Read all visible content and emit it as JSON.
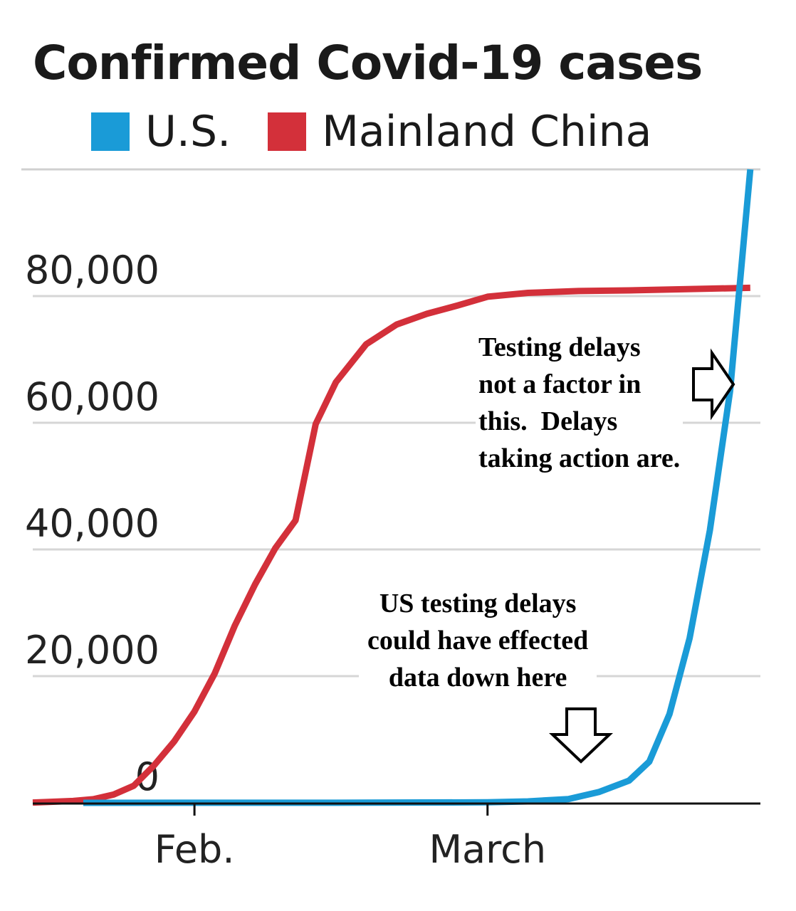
{
  "chart_data": {
    "type": "line",
    "title": "Confirmed Covid-19 cases",
    "xlabel": "",
    "ylabel": "",
    "ylim": [
      0,
      100000
    ],
    "y_ticks": [
      {
        "value": 0,
        "label": "0"
      },
      {
        "value": 20000,
        "label": "20,000"
      },
      {
        "value": 40000,
        "label": "40,000"
      },
      {
        "value": 60000,
        "label": "60,000"
      },
      {
        "value": 80000,
        "label": "80,000"
      }
    ],
    "x_ticks": [
      {
        "date": "2020-02-01",
        "label": "Feb."
      },
      {
        "date": "2020-03-01",
        "label": "March"
      }
    ],
    "x_range": [
      "2020-01-16",
      "2020-03-28"
    ],
    "grid": true,
    "legend": "top-left",
    "series": [
      {
        "name": "U.S.",
        "color": "#1a9bd7",
        "points": [
          [
            "2020-01-21",
            1
          ],
          [
            "2020-02-01",
            8
          ],
          [
            "2020-02-15",
            15
          ],
          [
            "2020-03-01",
            75
          ],
          [
            "2020-03-05",
            220
          ],
          [
            "2020-03-09",
            600
          ],
          [
            "2020-03-12",
            1700
          ],
          [
            "2020-03-15",
            3500
          ],
          [
            "2020-03-17",
            6500
          ],
          [
            "2020-03-19",
            14000
          ],
          [
            "2020-03-21",
            26000
          ],
          [
            "2020-03-23",
            43000
          ],
          [
            "2020-03-25",
            65000
          ],
          [
            "2020-03-27",
            100000
          ]
        ]
      },
      {
        "name": "Mainland China",
        "color": "#d3303a",
        "points": [
          [
            "2020-01-16",
            45
          ],
          [
            "2020-01-20",
            290
          ],
          [
            "2020-01-22",
            570
          ],
          [
            "2020-01-24",
            1300
          ],
          [
            "2020-01-26",
            2700
          ],
          [
            "2020-01-28",
            5900
          ],
          [
            "2020-01-30",
            9700
          ],
          [
            "2020-02-01",
            14400
          ],
          [
            "2020-02-03",
            20400
          ],
          [
            "2020-02-05",
            28000
          ],
          [
            "2020-02-07",
            34500
          ],
          [
            "2020-02-09",
            40200
          ],
          [
            "2020-02-11",
            44600
          ],
          [
            "2020-02-13",
            59800
          ],
          [
            "2020-02-15",
            66400
          ],
          [
            "2020-02-18",
            72400
          ],
          [
            "2020-02-21",
            75500
          ],
          [
            "2020-02-24",
            77200
          ],
          [
            "2020-02-27",
            78500
          ],
          [
            "2020-03-01",
            79900
          ],
          [
            "2020-03-05",
            80500
          ],
          [
            "2020-03-10",
            80800
          ],
          [
            "2020-03-15",
            80900
          ],
          [
            "2020-03-27",
            81300
          ]
        ]
      }
    ]
  },
  "annotations": {
    "top": "Testing delays\nnot a factor in\nthis.  Delays\ntaking action are.",
    "bottom": "US testing delays\ncould have effected\ndata down here"
  },
  "arrows": [
    "arrow-right-icon",
    "arrow-down-icon"
  ]
}
